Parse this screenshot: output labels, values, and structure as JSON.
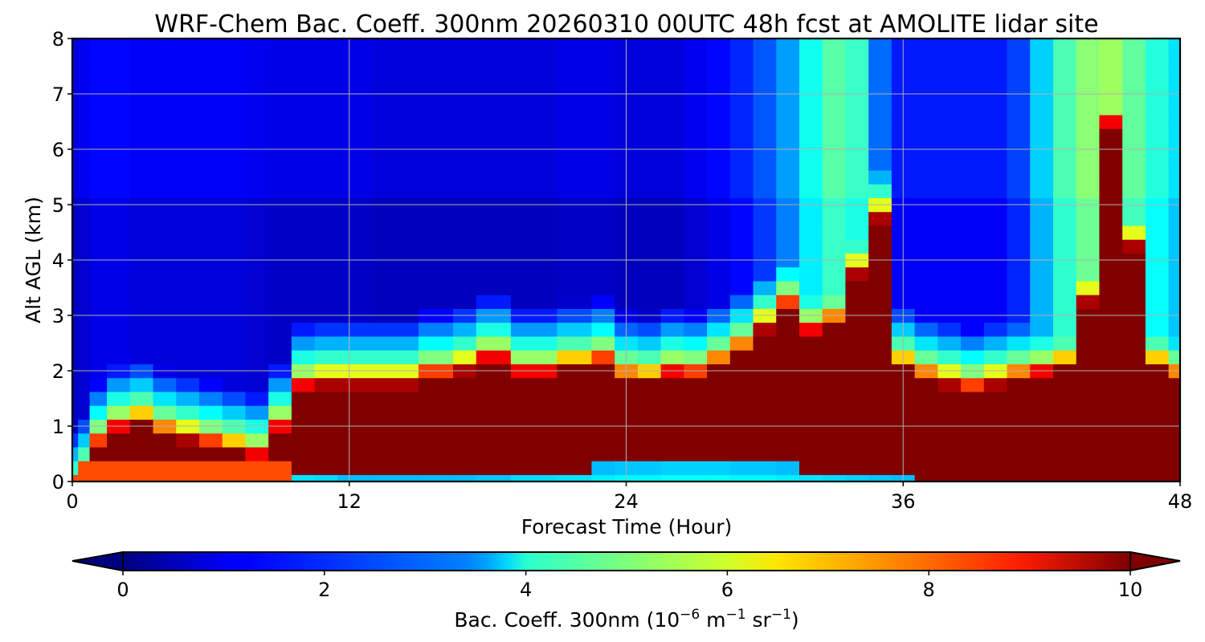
{
  "chart_data": {
    "type": "heatmap",
    "title": "WRF-Chem Bac. Coeff. 300nm  20260310 00UTC 48h fcst at AMOLITE lidar site",
    "xlabel": "Forecast Time (Hour)",
    "ylabel": "Alt AGL (km)",
    "xlim": [
      0,
      48
    ],
    "ylim": [
      0,
      8
    ],
    "x_ticks": [
      0,
      12,
      24,
      36,
      48
    ],
    "y_ticks": [
      0,
      1,
      2,
      3,
      4,
      5,
      6,
      7,
      8
    ],
    "grid": true,
    "colormap": "jet",
    "colorbar": {
      "label_main": "Bac. Coeff. 300nm  (10",
      "label_exp1": "−6",
      "label_mid": " m",
      "label_exp2": "−1",
      "label_mid2": " sr",
      "label_exp3": "−1",
      "label_end": ")",
      "range": [
        0,
        10
      ],
      "ticks": [
        0,
        2,
        4,
        6,
        8,
        10
      ],
      "extend": "both"
    },
    "x": [
      0,
      0.5,
      1,
      2,
      3,
      4,
      5,
      6,
      7,
      8,
      9,
      10,
      11,
      12,
      14,
      16,
      17,
      18,
      20,
      22,
      23,
      24,
      25,
      26,
      27,
      28,
      29,
      30,
      31,
      32,
      33,
      34,
      35,
      36,
      37,
      38,
      39,
      40,
      41,
      42,
      43,
      44,
      45,
      46,
      47,
      48
    ],
    "y": [
      0,
      0.25,
      0.5,
      0.75,
      1,
      1.25,
      1.5,
      1.75,
      2,
      2.25,
      2.5,
      2.75,
      3,
      3.25,
      3.5,
      3.75,
      4,
      4.25,
      4.5,
      4.75,
      5,
      5.25,
      5.5,
      5.75,
      6,
      6.25,
      6.5,
      6.75,
      7,
      7.25,
      7.5,
      7.75,
      8
    ],
    "aerosol_top_km": [
      0.0,
      0.3,
      0.9,
      1.2,
      1.3,
      1.1,
      1.0,
      0.9,
      0.8,
      0.7,
      1.2,
      1.95,
      2.0,
      2.0,
      2.0,
      2.15,
      2.25,
      2.45,
      2.2,
      2.3,
      2.4,
      2.1,
      2.05,
      2.2,
      2.15,
      2.35,
      2.6,
      3.0,
      3.4,
      2.95,
      3.1,
      4.0,
      5.0,
      2.3,
      2.1,
      2.0,
      1.9,
      2.0,
      2.1,
      2.2,
      2.3,
      3.5,
      6.7,
      4.5,
      2.3,
      2.1
    ],
    "low_layer_top_km": [
      0.05,
      0.1,
      0.1,
      0.1,
      0.1,
      0.1,
      0.1,
      0.3,
      0.35,
      0.35,
      0.3,
      0.25,
      0.2,
      0.05,
      0.05,
      0.05,
      0.05,
      0.1,
      0.2,
      0.25,
      0.3,
      0.35,
      0.35,
      0.4,
      0.4,
      0.4,
      0.35,
      0.35,
      0.3,
      0.25,
      0.2,
      0.15,
      0.1,
      0.05,
      0.0,
      0.0,
      0.0,
      0.0,
      0.0,
      0.0,
      0.0,
      0.0,
      0.0,
      0.0,
      0.0,
      0.0
    ],
    "upper_plume_value": [
      0.6,
      0.8,
      1.0,
      1.0,
      0.9,
      0.9,
      0.9,
      0.9,
      0.9,
      0.8,
      0.7,
      0.7,
      0.7,
      0.7,
      0.6,
      0.6,
      0.6,
      0.6,
      0.6,
      0.7,
      0.7,
      0.6,
      0.6,
      0.6,
      0.8,
      1.0,
      1.3,
      1.8,
      2.5,
      3.6,
      4.3,
      4.0,
      2.0,
      1.2,
      1.2,
      1.2,
      1.2,
      1.2,
      1.6,
      3.0,
      4.2,
      4.8,
      5.0,
      4.4,
      3.8,
      3.2
    ]
  }
}
